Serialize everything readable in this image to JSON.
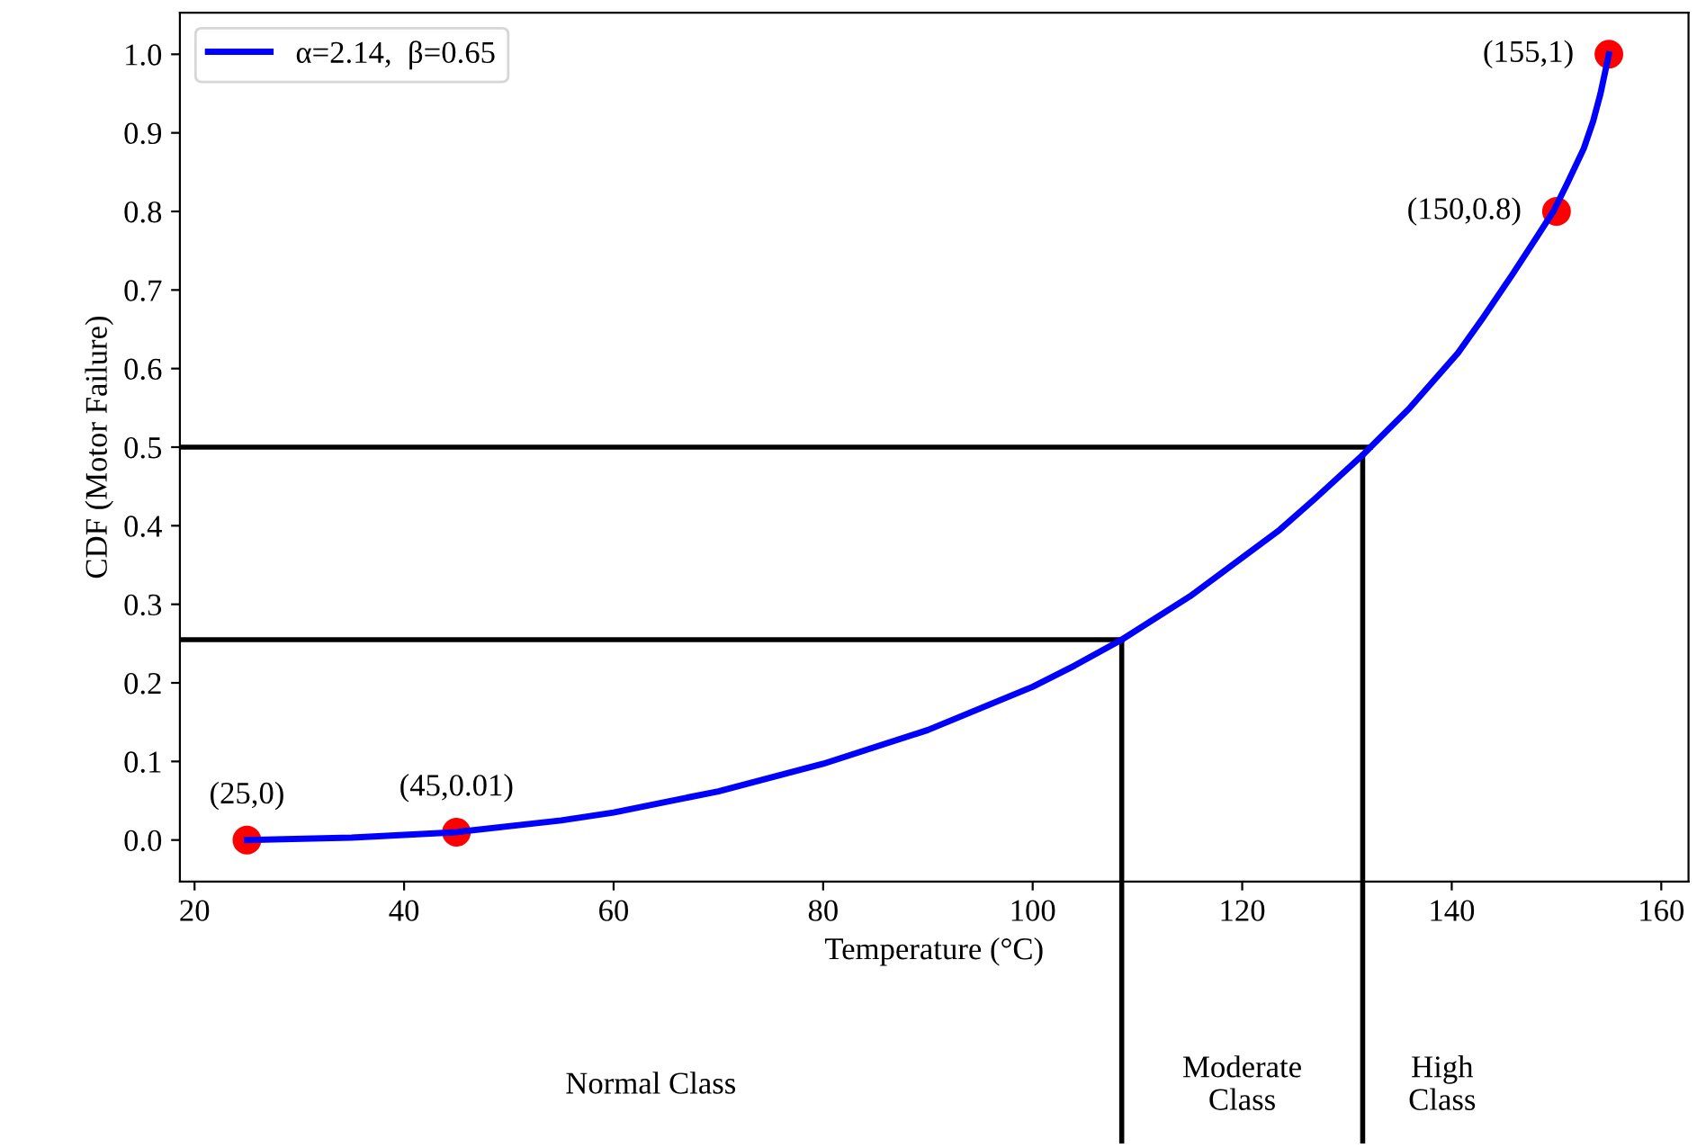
{
  "chart_data": {
    "type": "line",
    "xlabel": "Temperature (°C)",
    "ylabel": "CDF (Motor Failure)",
    "xlim": [
      18.6,
      162.6
    ],
    "ylim": [
      -0.053,
      1.053
    ],
    "xticks": [
      20,
      40,
      60,
      80,
      100,
      120,
      140,
      160
    ],
    "yticks": [
      {
        "value": 0,
        "label": "0.0"
      },
      0.1,
      0.2,
      0.3,
      0.4,
      0.5,
      0.6,
      0.7,
      0.8,
      0.9,
      {
        "value": 1,
        "label": "1.0"
      }
    ],
    "grid": false,
    "legend": "top left",
    "marker": "none",
    "line_style": "solid",
    "series": [
      {
        "name": "α=2.14,  β=0.65",
        "color": "#0000ff",
        "x": [
          25,
          35,
          45,
          55,
          60,
          70,
          80,
          90,
          100,
          104,
          108.5,
          115,
          123.6,
          127,
          131.5,
          136,
          140.6,
          143,
          145.8,
          148,
          149.7,
          151,
          152.6,
          153.5,
          154.2,
          155
        ],
        "values": [
          0,
          0.003,
          0.01,
          0.025,
          0.035,
          0.062,
          0.097,
          0.14,
          0.195,
          0.222,
          0.255,
          0.31,
          0.395,
          0.435,
          0.49,
          0.55,
          0.62,
          0.665,
          0.72,
          0.765,
          0.8,
          0.835,
          0.88,
          0.915,
          0.95,
          1.0
        ]
      },
      {
        "color": "#ff0000",
        "type": "scatter",
        "marker": "circle",
        "x": [
          25,
          45,
          150,
          155
        ],
        "values": [
          0,
          0.01,
          0.8,
          1.0
        ]
      }
    ],
    "ref_lines": [
      {
        "axis": "y",
        "value": 0.5
      },
      {
        "axis": "y",
        "value": 0.255
      },
      {
        "axis": "x",
        "value": 108.5
      },
      {
        "axis": "x",
        "value": 131.5
      }
    ],
    "annotations": [
      {
        "text": "(25,0)",
        "x": 25,
        "y": 0
      },
      {
        "text": "(45,0.01)",
        "x": 45,
        "y": 0.01
      },
      {
        "text": "(150,0.8)",
        "x": 150,
        "y": 0.8
      },
      {
        "text": "(155,1)",
        "x": 155,
        "y": 1.0
      },
      "Normal Class",
      "Moderate\nClass",
      "High\nClass"
    ]
  }
}
